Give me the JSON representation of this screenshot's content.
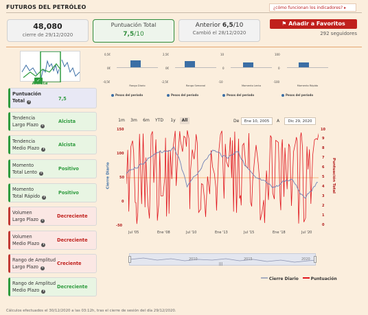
{
  "header": {
    "title": "FUTUROS DEL PETRÓLEO",
    "help_link": "¿cómo funcionan los indicadores? ▸"
  },
  "cards": {
    "close": {
      "value": "48,080",
      "sub": "cierre de 29/12/2020"
    },
    "score": {
      "title": "Puntuación Total",
      "value": "7,5",
      "suffix": "/10"
    },
    "previous": {
      "prefix": "Anterior ",
      "value": "6,5",
      "suffix": "/10",
      "sub": "Cambió el 28/12/2020"
    }
  },
  "favorites": {
    "label": "Añadir a Favoritos",
    "followers": "292 seguidores"
  },
  "trend_box": {
    "label": "Alcista"
  },
  "indicators": [
    {
      "label1": "Puntuación",
      "label2": "Total",
      "value": "7,5",
      "kind": "p"
    },
    {
      "label1": "Tendencia",
      "label2": "Largo Plazo",
      "value": "Alcista",
      "kind": "g"
    },
    {
      "label1": "Tendencia",
      "label2": "Medio Plazo",
      "value": "Alcista",
      "kind": "g"
    },
    {
      "label1": "Momento",
      "label2": "Total Lento",
      "value": "Positivo",
      "kind": "g"
    },
    {
      "label1": "Momento",
      "label2": "Total Rápido",
      "value": "Positivo",
      "kind": "g"
    },
    {
      "label1": "Volumen",
      "label2": "Largo Plazo",
      "value": "Decreciente",
      "kind": "r"
    },
    {
      "label1": "Volumen",
      "label2": "Medio Plazo",
      "value": "Decreciente",
      "kind": "r"
    },
    {
      "label1": "Rango de Amplitud",
      "label2": "Largo Plazo",
      "value": "Creciente",
      "kind": "r"
    },
    {
      "label1": "Rango de Amplitud",
      "label2": "Medio Plazo",
      "value": "Decreciente",
      "kind": "g"
    }
  ],
  "mini_charts": [
    {
      "title": "Rango Diario",
      "ticks": [
        "0,5€",
        "0€",
        "-0,5€"
      ],
      "value": 0.55,
      "legend": "Pesos del período"
    },
    {
      "title": "Rango Semanal",
      "ticks": [
        "2,5€",
        "0€",
        "-2,5€"
      ],
      "value": 0.5,
      "legend": "Pesos del período"
    },
    {
      "title": "Momento Lento",
      "ticks": [
        "10",
        "0",
        "-10"
      ],
      "value": 0.4,
      "legend": "Pesos del período"
    },
    {
      "title": "Momento Rápido",
      "ticks": [
        "100",
        "0",
        "-100"
      ],
      "value": 0.4,
      "legend": "Pesos del período"
    }
  ],
  "range_selector": {
    "buttons": [
      "1m",
      "3m",
      "6m",
      "YTD",
      "1y",
      "All"
    ],
    "selected": "All",
    "from_label": "De",
    "from_value": "Ene 10, 2005",
    "to_label": "A",
    "to_value": "Dic 29, 2020"
  },
  "chart_data": {
    "type": "line",
    "left_ylabel": "Cierre Diario",
    "right_ylabel": "Puntuación Total",
    "left_ticks": [
      "150",
      "100",
      "50",
      "0",
      "-50"
    ],
    "right_ticks": [
      "10",
      "9",
      "8",
      "7",
      "6",
      "5",
      "4",
      "3",
      "2",
      "1",
      "0"
    ],
    "x_ticks": [
      "Jul '05",
      "Ene '08",
      "Jul '10",
      "Ene '13",
      "Jul '15",
      "Ene '18",
      "Jul '20"
    ],
    "navigator_ticks": [
      "2010",
      "2015",
      "2020"
    ],
    "legend": [
      "Cierre Diario",
      "Puntuación"
    ],
    "series_colors": {
      "close": "#6d7fb5",
      "score": "#e0141c"
    },
    "ylim_left": [
      -50,
      150
    ],
    "ylim_right": [
      0,
      10
    ]
  },
  "footer": "Cálculos efectuados el 30/12/2020 a las 03:12h, tras el cierre de sesión del día 29/12/2020."
}
